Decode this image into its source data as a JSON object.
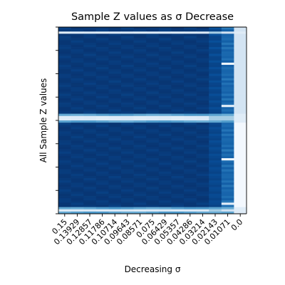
{
  "chart_data": {
    "type": "heatmap",
    "title": "Sample Z values as σ Decrease",
    "xlabel": "Decreasing σ",
    "ylabel": "All Sample Z values",
    "x_tick_labels": [
      "0.15",
      "0.13929",
      "0.12857",
      "0.11786",
      "0.10714",
      "0.09643",
      "0.08571",
      "0.075",
      "0.06429",
      "0.05357",
      "0.04286",
      "0.03214",
      "0.02143",
      "0.01071",
      "0.0"
    ],
    "colormap": "Blues",
    "color_range": [
      0,
      1
    ],
    "num_rows": 84,
    "highlight_rows": {
      "light_bands": [
        2,
        40,
        41,
        82
      ],
      "mid_bands": [
        39,
        42,
        81,
        83
      ]
    },
    "bright_cells": [
      {
        "row": 16,
        "col": 13,
        "value": 0.05
      },
      {
        "row": 35,
        "col": 13,
        "value": 0.08
      },
      {
        "row": 59,
        "col": 13,
        "value": 0.05
      },
      {
        "row": 79,
        "col": 13,
        "value": 0.1
      },
      {
        "row": 2,
        "col": 13,
        "value": 0.2
      },
      {
        "row": 82,
        "col": 13,
        "value": 0.2
      }
    ]
  }
}
